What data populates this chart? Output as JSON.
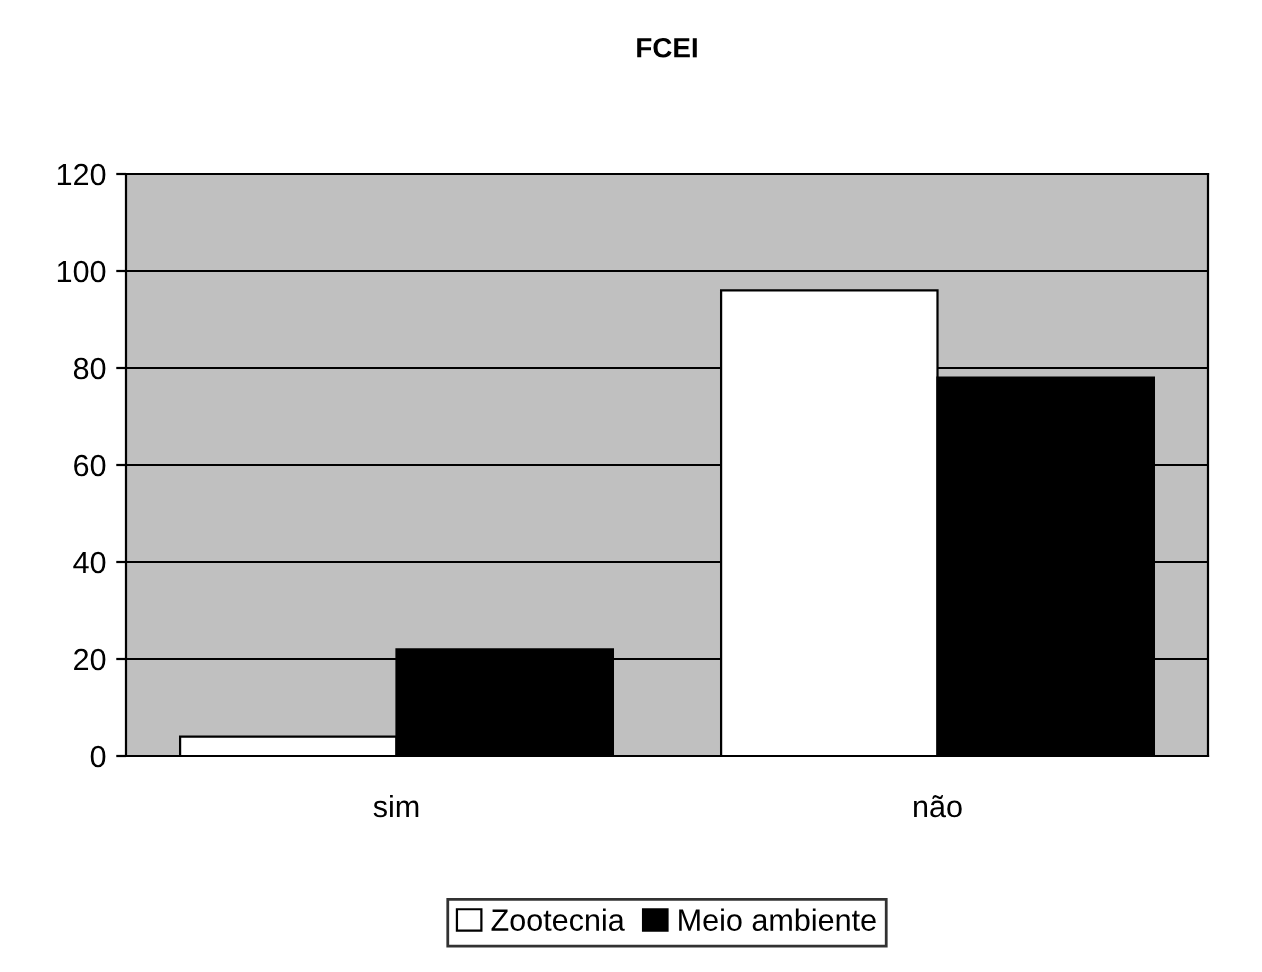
{
  "chart_data": {
    "type": "bar",
    "title": "FCEI",
    "categories": [
      "sim",
      "não"
    ],
    "series": [
      {
        "name": "Zootecnia",
        "color": "#ffffff",
        "values": [
          4,
          96
        ]
      },
      {
        "name": "Meio ambiente",
        "color": "#000000",
        "values": [
          22,
          78
        ]
      }
    ],
    "ylim": [
      0,
      120
    ],
    "yticks": [
      0,
      20,
      40,
      60,
      80,
      100,
      120
    ],
    "grid": "y",
    "legend": "bottom"
  }
}
